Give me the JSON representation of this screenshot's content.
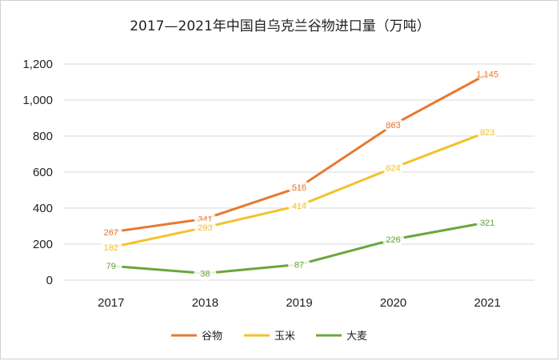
{
  "chart_data": {
    "type": "line",
    "title": "2017—2021年中国自乌克兰谷物进口量（万吨）",
    "x": [
      "2017",
      "2018",
      "2019",
      "2020",
      "2021"
    ],
    "ylim": [
      0,
      1200
    ],
    "yticks": [
      0,
      200,
      400,
      600,
      800,
      1000,
      1200
    ],
    "ytick_labels": [
      "0",
      "200",
      "400",
      "600",
      "800",
      "1,000",
      "1,200"
    ],
    "grid": true,
    "legend_position": "bottom",
    "series": [
      {
        "name": "谷物",
        "color": "#e8782f",
        "values": [
          267,
          341,
          516,
          863,
          1145
        ],
        "labels": [
          "267",
          "341",
          "516",
          "863",
          "1,145"
        ]
      },
      {
        "name": "玉米",
        "color": "#f3c22a",
        "values": [
          182,
          293,
          414,
          624,
          823
        ],
        "labels": [
          "182",
          "293",
          "414",
          "624",
          "823"
        ]
      },
      {
        "name": "大麦",
        "color": "#6aa73a",
        "values": [
          79,
          38,
          87,
          226,
          321
        ],
        "labels": [
          "79",
          "38",
          "87",
          "226",
          "321"
        ]
      }
    ]
  }
}
